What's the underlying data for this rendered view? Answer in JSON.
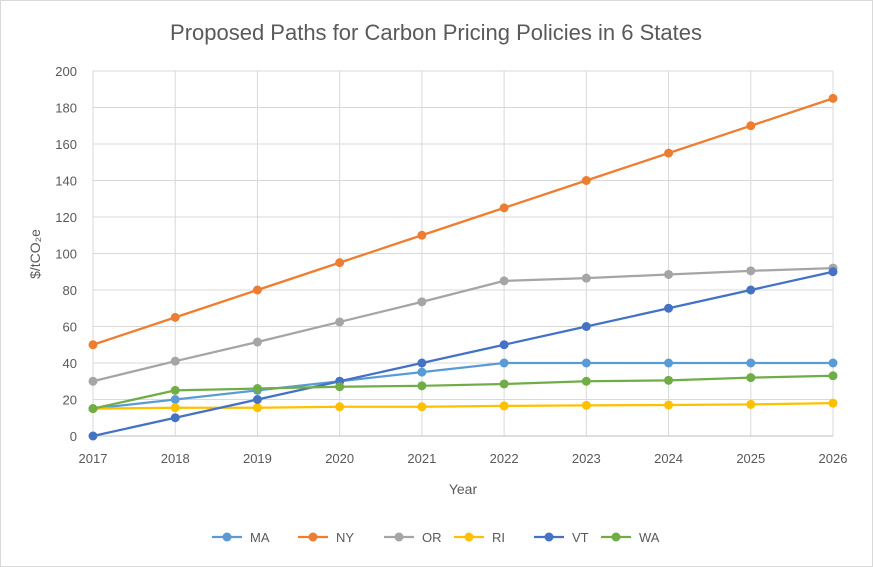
{
  "chart_data": {
    "type": "line",
    "title": "Proposed Paths for Carbon Pricing Policies in 6 States",
    "xlabel": "Year",
    "ylabel": "$/tCO₂e",
    "ylim": [
      0,
      200
    ],
    "yticks": [
      0,
      20,
      40,
      60,
      80,
      100,
      120,
      140,
      160,
      180,
      200
    ],
    "x": [
      "2017",
      "2018",
      "2019",
      "2020",
      "2021",
      "2022",
      "2023",
      "2024",
      "2025",
      "2026"
    ],
    "grid": true,
    "legend_position": "bottom",
    "series": [
      {
        "name": "MA",
        "color": "#5b9bd5",
        "values": [
          15,
          20,
          25,
          30,
          35,
          40,
          40,
          40,
          40,
          40
        ]
      },
      {
        "name": "NY",
        "color": "#ed7d31",
        "values": [
          50,
          65,
          80,
          95,
          110,
          125,
          140,
          155,
          170,
          185
        ]
      },
      {
        "name": "OR",
        "color": "#a5a5a5",
        "values": [
          30,
          41,
          51.5,
          62.5,
          73.5,
          85,
          86.5,
          88.5,
          90.5,
          92
        ]
      },
      {
        "name": "RI",
        "color": "#ffc000",
        "values": [
          15,
          15.5,
          15.5,
          16,
          16,
          16.5,
          16.8,
          17,
          17.3,
          18
        ]
      },
      {
        "name": "VT",
        "color": "#4472c4",
        "values": [
          0,
          10,
          20,
          30,
          40,
          50,
          60,
          70,
          80,
          90
        ]
      },
      {
        "name": "WA",
        "color": "#70ad47",
        "values": [
          15,
          25,
          26,
          27,
          27.5,
          28.5,
          30,
          30.5,
          32,
          33
        ]
      }
    ]
  }
}
